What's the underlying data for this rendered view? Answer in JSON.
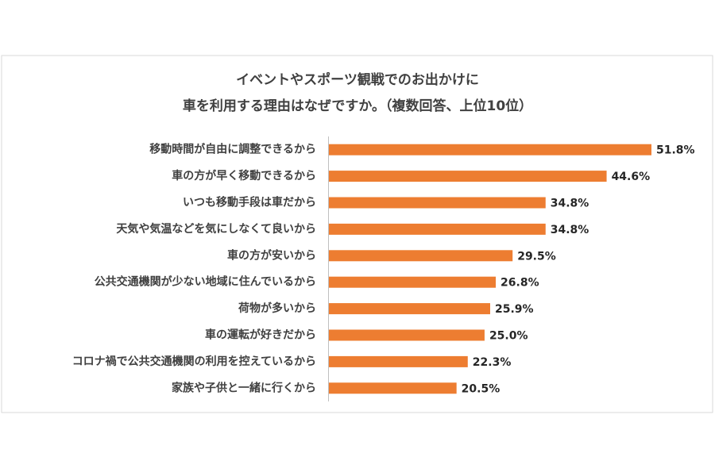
{
  "chart_data": {
    "type": "bar",
    "orientation": "horizontal",
    "title": [
      "イベントやスポーツ観戦でのお出かけに",
      "車を利用する理由はなぜですか。（複数回答、上位10位）"
    ],
    "categories": [
      "移動時間が自由に調整できるから",
      "車の方が早く移動できるから",
      "いつも移動手段は車だから",
      "天気や気温などを気にしなくて良いから",
      "車の方が安いから",
      "公共交通機関が少ない地域に住んでいるから",
      "荷物が多いから",
      "車の運転が好きだから",
      "コロナ禍で公共交通機関の利用を控えているから",
      "家族や子供と一緒に行くから"
    ],
    "values": [
      51.8,
      44.6,
      34.8,
      34.8,
      29.5,
      26.8,
      25.9,
      25.0,
      22.3,
      20.5
    ],
    "value_labels": [
      "51.8%",
      "44.6%",
      "34.8%",
      "34.8%",
      "29.5%",
      "26.8%",
      "25.9%",
      "25.0%",
      "22.3%",
      "20.5%"
    ],
    "color": "#ed7d31"
  }
}
